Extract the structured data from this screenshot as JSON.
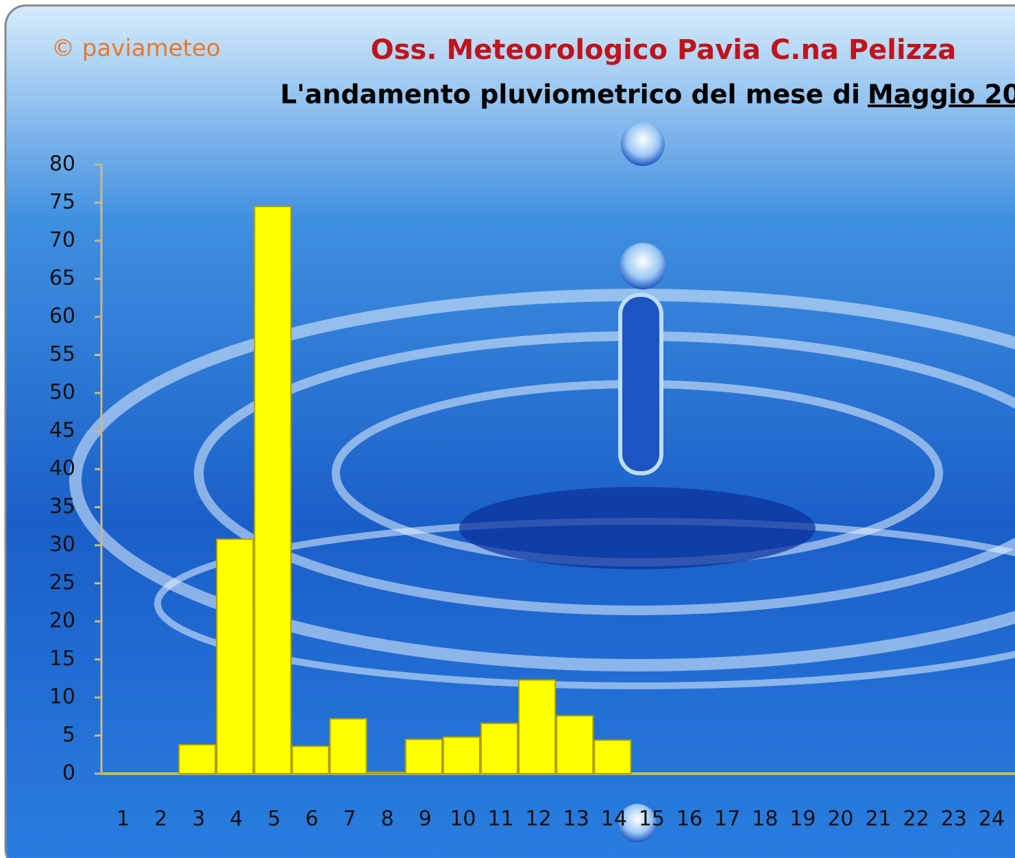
{
  "chart_data": {
    "type": "bar",
    "watermark": "© paviameteo",
    "title": "Oss. Meteorologico Pavia C.na Pelizza",
    "subtitle": "L'andamento pluviometrico del mese di",
    "subtitle_month": "Maggio 20",
    "categories": [
      "1",
      "2",
      "3",
      "4",
      "5",
      "6",
      "7",
      "8",
      "9",
      "10",
      "11",
      "12",
      "13",
      "14",
      "15",
      "16",
      "17",
      "18",
      "19",
      "20",
      "21",
      "22",
      "23",
      "24"
    ],
    "values": [
      0,
      0,
      3.8,
      30.8,
      74.5,
      3.6,
      7.2,
      0.2,
      4.5,
      4.8,
      6.6,
      12.3,
      7.6,
      4.4,
      0,
      0,
      0,
      0,
      0,
      0,
      0,
      0,
      0,
      0
    ],
    "color": "#ffff00",
    "ylim": [
      0,
      80
    ],
    "yticks": [
      0,
      5,
      10,
      15,
      20,
      25,
      30,
      35,
      40,
      45,
      50,
      55,
      60,
      65,
      70,
      75,
      80
    ]
  }
}
